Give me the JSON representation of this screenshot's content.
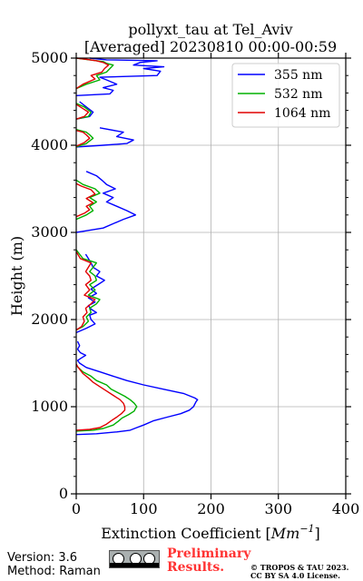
{
  "chart_data": {
    "type": "line",
    "title_line1": "pollyxt_tau at Tel_Aviv",
    "title_line2": "[Averaged] 20230810 00:00-00:59",
    "xlabel": "Extinction Coefficient [",
    "xlabel_unit": "Mm",
    "xlabel_exp": "−1",
    "xlabel_close": "]",
    "ylabel": "Height (m)",
    "xlim": [
      0,
      400
    ],
    "ylim": [
      0,
      5000
    ],
    "xticks": [
      "0",
      "100",
      "200",
      "300",
      "400"
    ],
    "yticks": [
      "0",
      "1000",
      "2000",
      "3000",
      "4000",
      "5000"
    ],
    "grid": true,
    "legend_position": "top-right",
    "series": [
      {
        "name": "355 nm",
        "color": "#0000ff",
        "segments": [
          [
            [
              0,
              680
            ],
            [
              30,
              690
            ],
            [
              60,
              710
            ],
            [
              80,
              730
            ],
            [
              90,
              760
            ],
            [
              100,
              790
            ],
            [
              115,
              840
            ],
            [
              135,
              880
            ],
            [
              155,
              920
            ],
            [
              168,
              960
            ],
            [
              174,
              1000
            ],
            [
              176,
              1030
            ],
            [
              178,
              1060
            ],
            [
              180,
              1080
            ],
            [
              176,
              1100
            ],
            [
              160,
              1150
            ],
            [
              130,
              1200
            ],
            [
              100,
              1250
            ],
            [
              75,
              1300
            ],
            [
              55,
              1350
            ],
            [
              35,
              1400
            ],
            [
              15,
              1450
            ],
            [
              5,
              1500
            ],
            [
              2,
              1530
            ],
            [
              8,
              1560
            ],
            [
              14,
              1590
            ],
            [
              6,
              1620
            ],
            [
              2,
              1660
            ],
            [
              5,
              1700
            ],
            [
              2,
              1750
            ]
          ],
          [
            [
              0,
              1850
            ],
            [
              15,
              1900
            ],
            [
              28,
              1950
            ],
            [
              22,
              2000
            ],
            [
              20,
              2050
            ],
            [
              30,
              2080
            ],
            [
              22,
              2120
            ],
            [
              18,
              2160
            ],
            [
              28,
              2200
            ],
            [
              18,
              2250
            ],
            [
              30,
              2300
            ],
            [
              22,
              2350
            ],
            [
              32,
              2400
            ],
            [
              42,
              2450
            ],
            [
              30,
              2500
            ],
            [
              35,
              2550
            ],
            [
              25,
              2600
            ],
            [
              22,
              2650
            ],
            [
              18,
              2700
            ],
            [
              14,
              2750
            ]
          ],
          [
            [
              0,
              3000
            ],
            [
              40,
              3050
            ],
            [
              55,
              3100
            ],
            [
              70,
              3150
            ],
            [
              88,
              3200
            ],
            [
              75,
              3250
            ],
            [
              60,
              3300
            ],
            [
              45,
              3350
            ],
            [
              55,
              3400
            ],
            [
              40,
              3450
            ],
            [
              58,
              3500
            ],
            [
              45,
              3550
            ],
            [
              38,
              3600
            ],
            [
              30,
              3650
            ],
            [
              15,
              3700
            ]
          ],
          [
            [
              0,
              3980
            ],
            [
              40,
              4000
            ],
            [
              75,
              4020
            ],
            [
              85,
              4060
            ],
            [
              60,
              4100
            ],
            [
              70,
              4150
            ],
            [
              35,
              4200
            ]
          ],
          [
            [
              0,
              4300
            ],
            [
              20,
              4330
            ],
            [
              25,
              4380
            ],
            [
              15,
              4440
            ],
            [
              5,
              4500
            ]
          ],
          [
            [
              0,
              4570
            ],
            [
              50,
              4590
            ],
            [
              55,
              4630
            ],
            [
              40,
              4660
            ],
            [
              60,
              4700
            ],
            [
              45,
              4750
            ],
            [
              35,
              4780
            ],
            [
              120,
              4800
            ],
            [
              125,
              4850
            ],
            [
              100,
              4880
            ],
            [
              130,
              4900
            ],
            [
              85,
              4920
            ],
            [
              95,
              4950
            ],
            [
              120,
              4970
            ],
            [
              45,
              4980
            ],
            [
              20,
              5000
            ]
          ]
        ]
      },
      {
        "name": "532 nm",
        "color": "#00b000",
        "segments": [
          [
            [
              0,
              720
            ],
            [
              25,
              730
            ],
            [
              40,
              750
            ],
            [
              55,
              790
            ],
            [
              62,
              830
            ],
            [
              68,
              870
            ],
            [
              78,
              910
            ],
            [
              86,
              950
            ],
            [
              88,
              980
            ],
            [
              90,
              1000
            ],
            [
              86,
              1040
            ],
            [
              80,
              1080
            ],
            [
              72,
              1120
            ],
            [
              62,
              1160
            ],
            [
              52,
              1200
            ],
            [
              45,
              1250
            ],
            [
              30,
              1300
            ],
            [
              22,
              1350
            ],
            [
              10,
              1400
            ],
            [
              3,
              1450
            ],
            [
              0,
              1480
            ]
          ],
          [
            [
              0,
              1880
            ],
            [
              10,
              1920
            ],
            [
              18,
              1980
            ],
            [
              15,
              2030
            ],
            [
              22,
              2080
            ],
            [
              20,
              2130
            ],
            [
              30,
              2180
            ],
            [
              35,
              2230
            ],
            [
              18,
              2280
            ],
            [
              28,
              2340
            ],
            [
              20,
              2400
            ],
            [
              30,
              2450
            ],
            [
              28,
              2500
            ],
            [
              20,
              2550
            ],
            [
              25,
              2600
            ],
            [
              30,
              2650
            ],
            [
              10,
              2700
            ],
            [
              5,
              2750
            ],
            [
              0,
              2800
            ]
          ],
          [
            [
              0,
              3150
            ],
            [
              15,
              3200
            ],
            [
              25,
              3250
            ],
            [
              20,
              3300
            ],
            [
              30,
              3350
            ],
            [
              20,
              3400
            ],
            [
              35,
              3450
            ],
            [
              28,
              3500
            ],
            [
              10,
              3550
            ],
            [
              0,
              3600
            ]
          ],
          [
            [
              0,
              3980
            ],
            [
              15,
              4020
            ],
            [
              25,
              4080
            ],
            [
              20,
              4120
            ],
            [
              15,
              4150
            ],
            [
              0,
              4180
            ]
          ],
          [
            [
              0,
              4300
            ],
            [
              18,
              4330
            ],
            [
              22,
              4380
            ],
            [
              12,
              4440
            ],
            [
              0,
              4480
            ]
          ],
          [
            [
              0,
              4650
            ],
            [
              15,
              4700
            ],
            [
              35,
              4750
            ],
            [
              30,
              4800
            ],
            [
              45,
              4840
            ],
            [
              50,
              4880
            ],
            [
              55,
              4920
            ],
            [
              45,
              4940
            ],
            [
              40,
              4960
            ],
            [
              20,
              4980
            ],
            [
              0,
              5000
            ]
          ]
        ]
      },
      {
        "name": "1064 nm",
        "color": "#e00000",
        "segments": [
          [
            [
              0,
              730
            ],
            [
              20,
              740
            ],
            [
              35,
              760
            ],
            [
              45,
              800
            ],
            [
              52,
              840
            ],
            [
              60,
              880
            ],
            [
              67,
              920
            ],
            [
              72,
              960
            ],
            [
              72,
              1000
            ],
            [
              70,
              1040
            ],
            [
              65,
              1080
            ],
            [
              55,
              1130
            ],
            [
              45,
              1180
            ],
            [
              35,
              1230
            ],
            [
              25,
              1280
            ],
            [
              18,
              1330
            ],
            [
              10,
              1380
            ],
            [
              5,
              1430
            ],
            [
              2,
              1460
            ],
            [
              0,
              1490
            ]
          ],
          [
            [
              0,
              1880
            ],
            [
              8,
              1920
            ],
            [
              12,
              1980
            ],
            [
              10,
              2030
            ],
            [
              16,
              2080
            ],
            [
              14,
              2130
            ],
            [
              22,
              2180
            ],
            [
              28,
              2230
            ],
            [
              12,
              2280
            ],
            [
              20,
              2340
            ],
            [
              14,
              2400
            ],
            [
              22,
              2450
            ],
            [
              20,
              2500
            ],
            [
              14,
              2550
            ],
            [
              18,
              2600
            ],
            [
              22,
              2650
            ],
            [
              6,
              2700
            ],
            [
              0,
              2780
            ]
          ],
          [
            [
              0,
              3180
            ],
            [
              12,
              3220
            ],
            [
              20,
              3260
            ],
            [
              15,
              3300
            ],
            [
              25,
              3340
            ],
            [
              15,
              3390
            ],
            [
              28,
              3440
            ],
            [
              22,
              3490
            ],
            [
              8,
              3530
            ],
            [
              0,
              3560
            ]
          ],
          [
            [
              0,
              3990
            ],
            [
              12,
              4030
            ],
            [
              20,
              4080
            ],
            [
              15,
              4120
            ],
            [
              10,
              4150
            ],
            [
              0,
              4170
            ]
          ],
          [
            [
              0,
              4300
            ],
            [
              12,
              4330
            ],
            [
              18,
              4380
            ],
            [
              8,
              4430
            ],
            [
              0,
              4470
            ]
          ],
          [
            [
              0,
              4650
            ],
            [
              10,
              4700
            ],
            [
              28,
              4760
            ],
            [
              22,
              4800
            ],
            [
              38,
              4840
            ],
            [
              42,
              4880
            ],
            [
              48,
              4920
            ],
            [
              40,
              4950
            ],
            [
              30,
              4970
            ],
            [
              12,
              4990
            ],
            [
              0,
              5000
            ]
          ]
        ]
      }
    ]
  },
  "footer": {
    "version": "Version: 3.6",
    "method": "Method: Raman",
    "prelim_line1": "Preliminary",
    "prelim_line2": "Results.",
    "prelim_color": "#ff3333",
    "license_line1": "© TROPOS & TAU 2023.",
    "license_line2": "CC BY SA 4.0 License.",
    "cc_badge_icon": "cc-by-sa-badge"
  }
}
